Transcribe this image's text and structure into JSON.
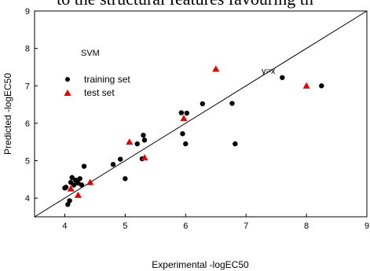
{
  "page": {
    "top_text": "to the structural features favouring th"
  },
  "chart_data": {
    "type": "scatter",
    "title": "",
    "xlabel": "Experimental -logEC50",
    "ylabel": "Predicted -logEC50",
    "xlim": [
      3.5,
      9
    ],
    "ylim": [
      3.5,
      9
    ],
    "xticks": [
      "4",
      "5",
      "6",
      "7",
      "8",
      "9"
    ],
    "yticks": [
      "4",
      "5",
      "6",
      "7",
      "8",
      "9"
    ],
    "grid": false,
    "legend_position": "upper-left",
    "annotations": [
      "SVM",
      "y=x"
    ],
    "reference_line": {
      "label": "y=x",
      "from": [
        3.5,
        3.5
      ],
      "to": [
        9,
        9
      ]
    },
    "series": [
      {
        "name": "training set",
        "marker": "circle",
        "color": "#000000",
        "points": [
          [
            4.0,
            4.27
          ],
          [
            4.02,
            4.29
          ],
          [
            4.05,
            3.83
          ],
          [
            4.08,
            3.93
          ],
          [
            4.1,
            4.42
          ],
          [
            4.12,
            4.55
          ],
          [
            4.15,
            4.35
          ],
          [
            4.18,
            4.48
          ],
          [
            4.22,
            4.4
          ],
          [
            4.25,
            4.52
          ],
          [
            4.28,
            4.35
          ],
          [
            4.32,
            4.85
          ],
          [
            4.8,
            4.9
          ],
          [
            4.92,
            5.04
          ],
          [
            5.0,
            4.52
          ],
          [
            5.2,
            5.45
          ],
          [
            5.28,
            5.05
          ],
          [
            5.3,
            5.68
          ],
          [
            5.32,
            5.55
          ],
          [
            5.93,
            6.28
          ],
          [
            5.95,
            5.72
          ],
          [
            6.0,
            5.45
          ],
          [
            6.02,
            6.27
          ],
          [
            6.28,
            6.52
          ],
          [
            6.77,
            6.53
          ],
          [
            6.82,
            5.45
          ],
          [
            7.6,
            7.22
          ],
          [
            8.25,
            7.0
          ]
        ]
      },
      {
        "name": "test set",
        "marker": "triangle",
        "color": "#e00000",
        "points": [
          [
            4.1,
            4.25
          ],
          [
            4.22,
            4.08
          ],
          [
            4.42,
            4.42
          ],
          [
            5.07,
            5.5
          ],
          [
            5.32,
            5.08
          ],
          [
            5.97,
            6.13
          ],
          [
            6.5,
            7.45
          ],
          [
            8.0,
            7.0
          ]
        ]
      }
    ]
  }
}
